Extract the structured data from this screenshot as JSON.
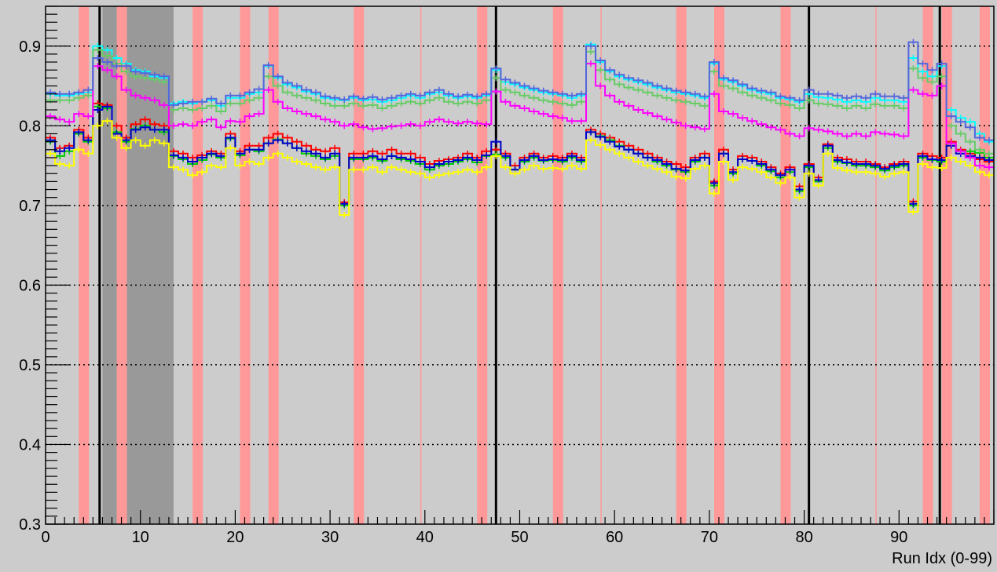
{
  "chart_data": {
    "type": "line",
    "xlabel": "Run Idx (0-99)",
    "ylabel": "",
    "xlim": [
      0,
      100
    ],
    "ylim": [
      0.3,
      0.95
    ],
    "x_ticks": [
      0,
      10,
      20,
      30,
      40,
      50,
      60,
      70,
      80,
      90
    ],
    "x_tick_labels": [
      "0",
      "10",
      "20",
      "30",
      "40",
      "50",
      "60",
      "70",
      "80",
      "90"
    ],
    "y_ticks": [
      0.3,
      0.4,
      0.5,
      0.6,
      0.7,
      0.8,
      0.9
    ],
    "y_tick_labels": [
      "0.3",
      "0.4",
      "0.5",
      "0.6",
      "0.7",
      "0.8",
      "0.9"
    ],
    "grid": "horizontal dotted",
    "background_color": "#cccccc",
    "highlight_color": "#ff9999",
    "gray_band_color": "#999999",
    "boundary_color": "#000000",
    "highlight_runs": [
      4,
      8,
      16,
      21,
      24,
      33,
      46,
      54,
      67,
      71,
      78,
      93,
      95,
      99
    ],
    "thin_highlight_runs": [
      39.6,
      58.6,
      87.6
    ],
    "gray_band": [
      6,
      13
    ],
    "boundary_lines": [
      5.7,
      47.5,
      80.5,
      94.3
    ],
    "series": [
      {
        "color": "#ff0000",
        "values": [
          0.785,
          0.772,
          0.775,
          0.795,
          0.785,
          0.828,
          0.826,
          0.8,
          0.785,
          0.802,
          0.808,
          0.802,
          0.8,
          0.768,
          0.765,
          0.76,
          0.763,
          0.768,
          0.765,
          0.79,
          0.768,
          0.775,
          0.775,
          0.785,
          0.79,
          0.785,
          0.78,
          0.775,
          0.77,
          0.768,
          0.772,
          0.704,
          0.765,
          0.765,
          0.768,
          0.765,
          0.77,
          0.765,
          0.765,
          0.76,
          0.752,
          0.756,
          0.758,
          0.76,
          0.765,
          0.76,
          0.768,
          0.77,
          0.765,
          0.75,
          0.76,
          0.765,
          0.76,
          0.762,
          0.76,
          0.765,
          0.76,
          0.795,
          0.79,
          0.785,
          0.78,
          0.775,
          0.77,
          0.765,
          0.76,
          0.755,
          0.752,
          0.748,
          0.76,
          0.765,
          0.73,
          0.77,
          0.745,
          0.762,
          0.76,
          0.755,
          0.748,
          0.74,
          0.748,
          0.724,
          0.752,
          0.735,
          0.777,
          0.76,
          0.758,
          0.755,
          0.755,
          0.752,
          0.748,
          0.752,
          0.755,
          0.705,
          0.765,
          0.762,
          0.76,
          0.78,
          0.77,
          0.765,
          0.758,
          0.755
        ]
      },
      {
        "color": "#00cc00",
        "values": [
          0.78,
          0.762,
          0.768,
          0.79,
          0.78,
          0.824,
          0.822,
          0.792,
          0.78,
          0.796,
          0.8,
          0.795,
          0.792,
          0.762,
          0.758,
          0.752,
          0.757,
          0.764,
          0.76,
          0.784,
          0.763,
          0.77,
          0.768,
          0.778,
          0.783,
          0.778,
          0.772,
          0.765,
          0.762,
          0.758,
          0.762,
          0.7,
          0.758,
          0.758,
          0.76,
          0.756,
          0.762,
          0.758,
          0.756,
          0.752,
          0.745,
          0.75,
          0.752,
          0.755,
          0.758,
          0.754,
          0.762,
          0.764,
          0.76,
          0.745,
          0.755,
          0.76,
          0.756,
          0.757,
          0.755,
          0.76,
          0.755,
          0.792,
          0.787,
          0.782,
          0.775,
          0.77,
          0.765,
          0.76,
          0.755,
          0.75,
          0.745,
          0.742,
          0.755,
          0.76,
          0.725,
          0.765,
          0.74,
          0.758,
          0.756,
          0.75,
          0.743,
          0.735,
          0.742,
          0.718,
          0.748,
          0.73,
          0.772,
          0.755,
          0.753,
          0.75,
          0.75,
          0.748,
          0.744,
          0.748,
          0.75,
          0.7,
          0.76,
          0.757,
          0.755,
          0.775,
          0.768,
          0.768,
          0.766,
          0.76
        ]
      },
      {
        "color": "#0000cc",
        "values": [
          0.782,
          0.768,
          0.772,
          0.792,
          0.782,
          0.82,
          0.824,
          0.79,
          0.782,
          0.795,
          0.798,
          0.795,
          0.795,
          0.763,
          0.76,
          0.755,
          0.76,
          0.765,
          0.762,
          0.785,
          0.765,
          0.77,
          0.77,
          0.778,
          0.782,
          0.778,
          0.772,
          0.768,
          0.765,
          0.76,
          0.765,
          0.702,
          0.76,
          0.76,
          0.762,
          0.758,
          0.762,
          0.76,
          0.758,
          0.755,
          0.748,
          0.752,
          0.755,
          0.757,
          0.76,
          0.757,
          0.763,
          0.78,
          0.762,
          0.745,
          0.757,
          0.762,
          0.757,
          0.758,
          0.757,
          0.762,
          0.757,
          0.792,
          0.786,
          0.78,
          0.774,
          0.77,
          0.765,
          0.76,
          0.757,
          0.752,
          0.746,
          0.744,
          0.757,
          0.76,
          0.728,
          0.765,
          0.742,
          0.758,
          0.756,
          0.752,
          0.745,
          0.738,
          0.745,
          0.72,
          0.75,
          0.732,
          0.775,
          0.757,
          0.754,
          0.752,
          0.752,
          0.75,
          0.746,
          0.75,
          0.752,
          0.702,
          0.762,
          0.758,
          0.757,
          0.775,
          0.765,
          0.762,
          0.76,
          0.757
        ]
      },
      {
        "color": "#ffff00",
        "values": [
          0.765,
          0.752,
          0.75,
          0.77,
          0.765,
          0.8,
          0.806,
          0.785,
          0.772,
          0.782,
          0.775,
          0.782,
          0.778,
          0.748,
          0.745,
          0.738,
          0.742,
          0.75,
          0.748,
          0.772,
          0.75,
          0.755,
          0.752,
          0.76,
          0.765,
          0.76,
          0.755,
          0.752,
          0.748,
          0.745,
          0.748,
          0.688,
          0.745,
          0.745,
          0.748,
          0.742,
          0.748,
          0.745,
          0.742,
          0.74,
          0.735,
          0.738,
          0.74,
          0.742,
          0.745,
          0.742,
          0.748,
          0.762,
          0.748,
          0.74,
          0.745,
          0.75,
          0.746,
          0.747,
          0.746,
          0.75,
          0.746,
          0.782,
          0.776,
          0.77,
          0.765,
          0.76,
          0.755,
          0.75,
          0.746,
          0.742,
          0.736,
          0.734,
          0.746,
          0.75,
          0.715,
          0.755,
          0.732,
          0.748,
          0.746,
          0.742,
          0.735,
          0.728,
          0.735,
          0.71,
          0.74,
          0.725,
          0.765,
          0.747,
          0.744,
          0.742,
          0.742,
          0.74,
          0.736,
          0.74,
          0.742,
          0.692,
          0.752,
          0.748,
          0.747,
          0.76,
          0.755,
          0.75,
          0.742,
          0.738
        ]
      },
      {
        "color": "#00ffff",
        "values": [
          0.84,
          0.838,
          0.838,
          0.84,
          0.842,
          0.9,
          0.895,
          0.885,
          0.878,
          0.87,
          0.868,
          0.862,
          0.86,
          0.828,
          0.83,
          0.828,
          0.83,
          0.832,
          0.825,
          0.835,
          0.835,
          0.84,
          0.842,
          0.875,
          0.86,
          0.852,
          0.848,
          0.843,
          0.84,
          0.835,
          0.833,
          0.832,
          0.835,
          0.832,
          0.833,
          0.83,
          0.832,
          0.835,
          0.838,
          0.835,
          0.84,
          0.842,
          0.838,
          0.835,
          0.837,
          0.835,
          0.838,
          0.87,
          0.855,
          0.852,
          0.848,
          0.845,
          0.842,
          0.84,
          0.838,
          0.835,
          0.838,
          0.902,
          0.88,
          0.868,
          0.862,
          0.858,
          0.855,
          0.852,
          0.848,
          0.845,
          0.842,
          0.84,
          0.838,
          0.835,
          0.878,
          0.858,
          0.855,
          0.85,
          0.845,
          0.842,
          0.84,
          0.835,
          0.833,
          0.83,
          0.84,
          0.836,
          0.835,
          0.833,
          0.83,
          0.832,
          0.83,
          0.835,
          0.832,
          0.832,
          0.83,
          0.885,
          0.868,
          0.862,
          0.875,
          0.82,
          0.81,
          0.805,
          0.79,
          0.78
        ]
      },
      {
        "color": "#66cc66",
        "values": [
          0.832,
          0.832,
          0.832,
          0.835,
          0.838,
          0.895,
          0.888,
          0.878,
          0.868,
          0.862,
          0.86,
          0.858,
          0.855,
          0.82,
          0.822,
          0.82,
          0.822,
          0.825,
          0.818,
          0.828,
          0.828,
          0.832,
          0.835,
          0.862,
          0.85,
          0.842,
          0.838,
          0.835,
          0.832,
          0.828,
          0.825,
          0.825,
          0.828,
          0.825,
          0.826,
          0.822,
          0.825,
          0.828,
          0.83,
          0.828,
          0.832,
          0.835,
          0.83,
          0.828,
          0.83,
          0.828,
          0.832,
          0.86,
          0.845,
          0.842,
          0.838,
          0.835,
          0.832,
          0.83,
          0.828,
          0.826,
          0.83,
          0.893,
          0.87,
          0.858,
          0.852,
          0.848,
          0.845,
          0.842,
          0.838,
          0.835,
          0.832,
          0.83,
          0.828,
          0.825,
          0.868,
          0.85,
          0.847,
          0.842,
          0.838,
          0.835,
          0.832,
          0.828,
          0.826,
          0.822,
          0.832,
          0.828,
          0.827,
          0.825,
          0.822,
          0.825,
          0.822,
          0.827,
          0.825,
          0.825,
          0.822,
          0.872,
          0.86,
          0.855,
          0.862,
          0.8,
          0.79,
          0.78,
          0.77,
          0.765
        ]
      },
      {
        "color": "#ff00ff",
        "values": [
          0.812,
          0.808,
          0.805,
          0.815,
          0.812,
          0.875,
          0.87,
          0.862,
          0.845,
          0.838,
          0.835,
          0.832,
          0.826,
          0.8,
          0.802,
          0.8,
          0.805,
          0.808,
          0.798,
          0.806,
          0.805,
          0.812,
          0.815,
          0.845,
          0.83,
          0.822,
          0.818,
          0.815,
          0.812,
          0.808,
          0.805,
          0.8,
          0.802,
          0.798,
          0.796,
          0.797,
          0.799,
          0.8,
          0.802,
          0.8,
          0.805,
          0.808,
          0.805,
          0.803,
          0.805,
          0.803,
          0.802,
          0.843,
          0.83,
          0.825,
          0.822,
          0.818,
          0.815,
          0.812,
          0.81,
          0.806,
          0.806,
          0.878,
          0.85,
          0.838,
          0.83,
          0.825,
          0.82,
          0.816,
          0.812,
          0.808,
          0.804,
          0.8,
          0.798,
          0.796,
          0.84,
          0.818,
          0.815,
          0.81,
          0.806,
          0.802,
          0.798,
          0.795,
          0.79,
          0.787,
          0.797,
          0.795,
          0.793,
          0.79,
          0.787,
          0.79,
          0.787,
          0.792,
          0.79,
          0.789,
          0.787,
          0.845,
          0.84,
          0.838,
          0.85,
          0.778,
          0.768,
          0.76,
          0.75,
          0.748
        ]
      },
      {
        "color": "#5566dd",
        "values": [
          0.842,
          0.84,
          0.84,
          0.842,
          0.845,
          0.885,
          0.88,
          0.875,
          0.875,
          0.868,
          0.866,
          0.864,
          0.862,
          0.826,
          0.828,
          0.83,
          0.83,
          0.834,
          0.828,
          0.838,
          0.838,
          0.842,
          0.846,
          0.876,
          0.862,
          0.854,
          0.85,
          0.845,
          0.842,
          0.837,
          0.835,
          0.833,
          0.837,
          0.834,
          0.836,
          0.833,
          0.835,
          0.838,
          0.84,
          0.838,
          0.842,
          0.845,
          0.84,
          0.837,
          0.839,
          0.837,
          0.84,
          0.872,
          0.858,
          0.854,
          0.85,
          0.847,
          0.844,
          0.842,
          0.84,
          0.838,
          0.84,
          0.9,
          0.882,
          0.87,
          0.864,
          0.86,
          0.857,
          0.854,
          0.85,
          0.847,
          0.844,
          0.842,
          0.84,
          0.837,
          0.88,
          0.86,
          0.857,
          0.852,
          0.847,
          0.844,
          0.842,
          0.837,
          0.835,
          0.832,
          0.845,
          0.84,
          0.84,
          0.838,
          0.835,
          0.837,
          0.835,
          0.84,
          0.837,
          0.837,
          0.835,
          0.905,
          0.878,
          0.87,
          0.878,
          0.812,
          0.805,
          0.798,
          0.785,
          0.782
        ]
      }
    ]
  }
}
